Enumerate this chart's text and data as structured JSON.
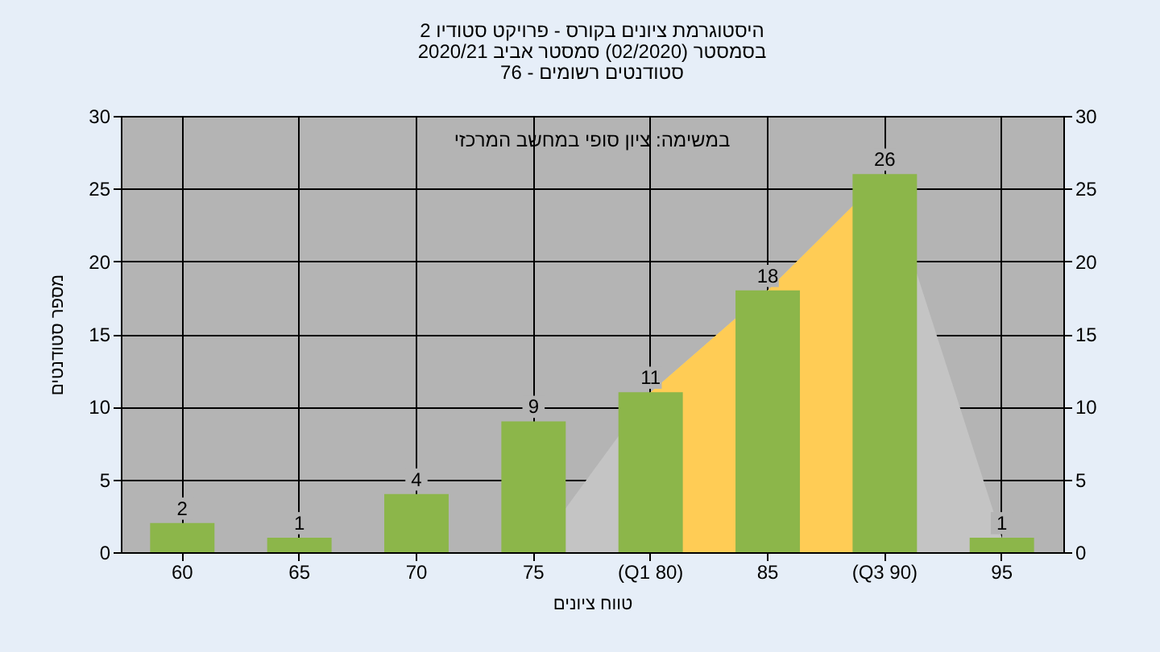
{
  "chart_data": {
    "type": "bar",
    "title": [
      "היסטוגרמת ציונים בקורס - פרויקט סטודיו 2",
      "בסמסטר (02/2020) סמסטר אביב 2020/21",
      "סטודנטים רשומים - 76"
    ],
    "xlabel": "טווח ציונים",
    "ylabel": "מספר סטודנטים",
    "annotations": [
      "במשימה: ציון סופי במחשב המרכזי"
    ],
    "categories": [
      "60",
      "65",
      "70",
      "75",
      "(Q1 80)",
      "85",
      "(Q3 90)",
      "95"
    ],
    "series": [
      {
        "type": "area",
        "color": "#c4c4c4",
        "values": [
          null,
          null,
          null,
          0,
          11,
          18,
          26,
          1
        ]
      },
      {
        "type": "area",
        "color": "#ffcc55",
        "values": [
          null,
          null,
          null,
          null,
          11,
          18,
          26,
          null
        ]
      },
      {
        "color": "#8cb64a",
        "values": [
          2,
          1,
          4,
          9,
          11,
          18,
          26,
          1
        ],
        "value_labels": [
          "2",
          "1",
          "4",
          "9",
          "11",
          "18",
          "26",
          "1"
        ]
      }
    ],
    "ylim": [
      0,
      30
    ],
    "yticks": [
      0,
      5,
      10,
      15,
      20,
      25,
      30
    ],
    "y2lim": [
      0,
      30
    ],
    "y2ticks": [
      0,
      5,
      10,
      15,
      20,
      25,
      30
    ],
    "grid": true
  }
}
